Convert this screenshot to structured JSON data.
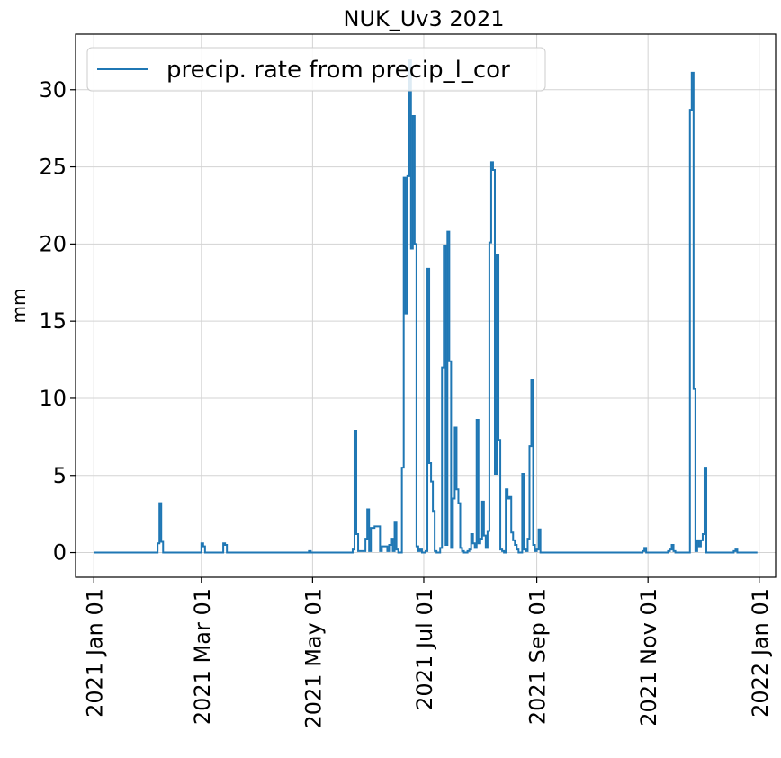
{
  "chart_data": {
    "type": "line",
    "title": "NUK_Uv3 2021",
    "ylabel": "mm",
    "xlabel": "",
    "ylim": [
      -1.6,
      33.6
    ],
    "xlim": [
      "2020-12-22",
      "2022-01-10"
    ],
    "yticks": [
      0,
      5,
      10,
      15,
      20,
      25,
      30
    ],
    "ytick_labels": [
      "0",
      "5",
      "10",
      "15",
      "20",
      "25",
      "30"
    ],
    "xticks": [
      "2021-01-01",
      "2021-03-01",
      "2021-05-01",
      "2021-07-01",
      "2021-09-01",
      "2021-11-01",
      "2022-01-01"
    ],
    "xtick_labels": [
      "2021 Jan 01",
      "2021 Mar 01",
      "2021 May 01",
      "2021 Jul 01",
      "2021 Sep 01",
      "2021 Nov 01",
      "2022 Jan 01"
    ],
    "grid": true,
    "legend_position": "top-left",
    "color": "#1f77b4",
    "series": [
      {
        "name": "precip. rate from precip_l_cor",
        "step": "post",
        "x": [
          "2021-01-01",
          "2021-02-05",
          "2021-02-06",
          "2021-02-07",
          "2021-02-08",
          "2021-02-09",
          "2021-03-01",
          "2021-03-02",
          "2021-03-03",
          "2021-03-13",
          "2021-03-14",
          "2021-03-15",
          "2021-04-29",
          "2021-04-30",
          "2021-05-23",
          "2021-05-24",
          "2021-05-25",
          "2021-05-26",
          "2021-05-30",
          "2021-05-31",
          "2021-06-01",
          "2021-06-02",
          "2021-06-04",
          "2021-06-07",
          "2021-06-08",
          "2021-06-11",
          "2021-06-12",
          "2021-06-13",
          "2021-06-14",
          "2021-06-15",
          "2021-06-16",
          "2021-06-17",
          "2021-06-18",
          "2021-06-19",
          "2021-06-20",
          "2021-06-21",
          "2021-06-22",
          "2021-06-23",
          "2021-06-24",
          "2021-06-25",
          "2021-06-26",
          "2021-06-27",
          "2021-06-28",
          "2021-06-29",
          "2021-06-30",
          "2021-07-01",
          "2021-07-02",
          "2021-07-03",
          "2021-07-04",
          "2021-07-05",
          "2021-07-06",
          "2021-07-07",
          "2021-07-08",
          "2021-07-09",
          "2021-07-10",
          "2021-07-11",
          "2021-07-12",
          "2021-07-13",
          "2021-07-14",
          "2021-07-15",
          "2021-07-16",
          "2021-07-17",
          "2021-07-18",
          "2021-07-19",
          "2021-07-20",
          "2021-07-21",
          "2021-07-22",
          "2021-07-23",
          "2021-07-24",
          "2021-07-25",
          "2021-07-26",
          "2021-07-27",
          "2021-07-28",
          "2021-07-29",
          "2021-07-30",
          "2021-07-31",
          "2021-08-01",
          "2021-08-02",
          "2021-08-03",
          "2021-08-04",
          "2021-08-05",
          "2021-08-06",
          "2021-08-07",
          "2021-08-08",
          "2021-08-09",
          "2021-08-10",
          "2021-08-11",
          "2021-08-12",
          "2021-08-13",
          "2021-08-14",
          "2021-08-15",
          "2021-08-16",
          "2021-08-17",
          "2021-08-18",
          "2021-08-19",
          "2021-08-20",
          "2021-08-21",
          "2021-08-22",
          "2021-08-23",
          "2021-08-24",
          "2021-08-25",
          "2021-08-26",
          "2021-08-27",
          "2021-08-28",
          "2021-08-29",
          "2021-08-30",
          "2021-08-31",
          "2021-09-01",
          "2021-09-02",
          "2021-09-03",
          "2021-09-04",
          "2021-09-05",
          "2021-09-06",
          "2021-09-07",
          "2021-09-08",
          "2021-09-09",
          "2021-09-10",
          "2021-09-11",
          "2021-09-12",
          "2021-10-29",
          "2021-10-30",
          "2021-10-31",
          "2021-11-12",
          "2021-11-13",
          "2021-11-14",
          "2021-11-15",
          "2021-11-16",
          "2021-11-24",
          "2021-11-25",
          "2021-11-26",
          "2021-11-27",
          "2021-11-28",
          "2021-11-29",
          "2021-11-30",
          "2021-12-01",
          "2021-12-02",
          "2021-12-03",
          "2021-12-18",
          "2021-12-19",
          "2021-12-20",
          "2021-12-31"
        ],
        "values": [
          0,
          0.6,
          3.2,
          0.7,
          0,
          0,
          0.6,
          0.4,
          0,
          0.6,
          0.5,
          0,
          0.1,
          0,
          0.2,
          7.9,
          1.2,
          0.1,
          0.9,
          2.8,
          0.1,
          1.6,
          1.7,
          0.1,
          0.4,
          0.1,
          0.5,
          0.9,
          0.1,
          2.0,
          0.2,
          0,
          0,
          5.5,
          24.3,
          15.5,
          24.4,
          31.9,
          19.7,
          28.3,
          20.0,
          0.4,
          0.1,
          0.2,
          0,
          0,
          0.1,
          18.4,
          5.8,
          4.6,
          2.7,
          0.1,
          0,
          0,
          0.3,
          12.0,
          19.9,
          0.5,
          20.8,
          12.4,
          0.3,
          3.5,
          8.1,
          4.1,
          3.2,
          0.3,
          0.1,
          0,
          0,
          0.1,
          0.2,
          1.2,
          0.6,
          0.3,
          8.6,
          0.6,
          0.9,
          3.3,
          1.1,
          0.3,
          1.4,
          20.1,
          25.3,
          24.8,
          5.1,
          19.3,
          7.3,
          0.2,
          0.1,
          0,
          4.1,
          3.5,
          3.6,
          1.3,
          0.8,
          0.5,
          0.2,
          0,
          0,
          5.1,
          0.2,
          0.1,
          0.9,
          6.9,
          11.2,
          0.5,
          0.1,
          0.2,
          1.5,
          0,
          0,
          0,
          0,
          0,
          0,
          0,
          0,
          0,
          0,
          0.1,
          0.3,
          0,
          0.1,
          0.2,
          0.5,
          0.1,
          0,
          28.7,
          31.1,
          10.6,
          0.1,
          0.8,
          0.4,
          0.8,
          1.2,
          5.5,
          0,
          0.1,
          0.2,
          0,
          0
        ]
      }
    ]
  }
}
